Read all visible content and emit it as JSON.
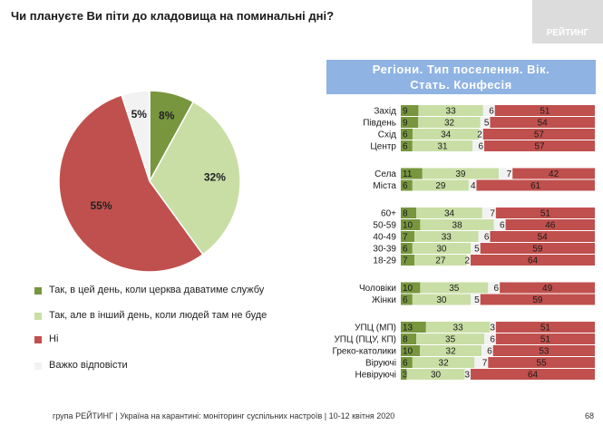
{
  "title": "Чи плануєте Ви піти до кладовища на поминальні дні?",
  "logo_text": "РЕЙТИНГ",
  "panel_header_line1": "Регіони. Тип поселення. Вік.",
  "panel_header_line2": "Стать. Конфесія",
  "footer": "група РЕЙТИНГ | Україна на карантині: моніторинг суспільних настроїв | 10-12 квітня 2020",
  "page_number": "68",
  "colors": {
    "dark_green": "#77963e",
    "light_green": "#c9dea5",
    "red": "#c0504d",
    "light_gray": "#f2f2f2"
  },
  "chart_data": [
    {
      "type": "pie",
      "series": [
        {
          "label": "Так, в цей день, коли церква даватиме службу",
          "value": 8,
          "display": "8%",
          "color": "#77963e"
        },
        {
          "label": "Так, але в інший день, коли людей там не буде",
          "value": 32,
          "display": "32%",
          "color": "#c9dea5"
        },
        {
          "label": "Ні",
          "value": 55,
          "display": "55%",
          "color": "#c0504d"
        },
        {
          "label": "Важко відповісти",
          "value": 5,
          "display": "5%",
          "color": "#f2f2f2"
        }
      ]
    },
    {
      "type": "bar",
      "stacked": true,
      "orientation": "horizontal",
      "series_order": [
        "Так, в цей день, коли церква даватиме службу",
        "Так, але в інший день, коли людей там не буде",
        "Важко відповісти",
        "Ні"
      ],
      "groups": [
        {
          "rows": [
            {
              "label": "Захід",
              "values": [
                9,
                33,
                6,
                51
              ]
            },
            {
              "label": "Південь",
              "values": [
                9,
                32,
                5,
                54
              ]
            },
            {
              "label": "Схід",
              "values": [
                6,
                34,
                2,
                57
              ]
            },
            {
              "label": "Центр",
              "values": [
                6,
                31,
                6,
                57
              ]
            }
          ]
        },
        {
          "rows": [
            {
              "label": "Села",
              "values": [
                11,
                39,
                7,
                42
              ]
            },
            {
              "label": "Міста",
              "values": [
                6,
                29,
                4,
                61
              ]
            }
          ]
        },
        {
          "rows": [
            {
              "label": "60+",
              "values": [
                8,
                34,
                7,
                51
              ]
            },
            {
              "label": "50-59",
              "values": [
                10,
                38,
                6,
                46
              ]
            },
            {
              "label": "40-49",
              "values": [
                7,
                33,
                6,
                54
              ]
            },
            {
              "label": "30-39",
              "values": [
                6,
                30,
                5,
                59
              ]
            },
            {
              "label": "18-29",
              "values": [
                7,
                27,
                2,
                64
              ]
            }
          ]
        },
        {
          "rows": [
            {
              "label": "Чоловіки",
              "values": [
                10,
                35,
                6,
                49
              ]
            },
            {
              "label": "Жінки",
              "values": [
                6,
                30,
                5,
                59
              ]
            }
          ]
        },
        {
          "rows": [
            {
              "label": "УПЦ (МП)",
              "values": [
                13,
                33,
                3,
                51
              ]
            },
            {
              "label": "УПЦ (ПЦУ, КП)",
              "values": [
                8,
                35,
                6,
                51
              ]
            },
            {
              "label": "Греко-католики",
              "values": [
                10,
                32,
                6,
                53
              ]
            },
            {
              "label": "Віруючі",
              "values": [
                6,
                32,
                7,
                55
              ]
            },
            {
              "label": "Невіруючі",
              "values": [
                3,
                30,
                3,
                64
              ]
            }
          ]
        }
      ]
    }
  ]
}
